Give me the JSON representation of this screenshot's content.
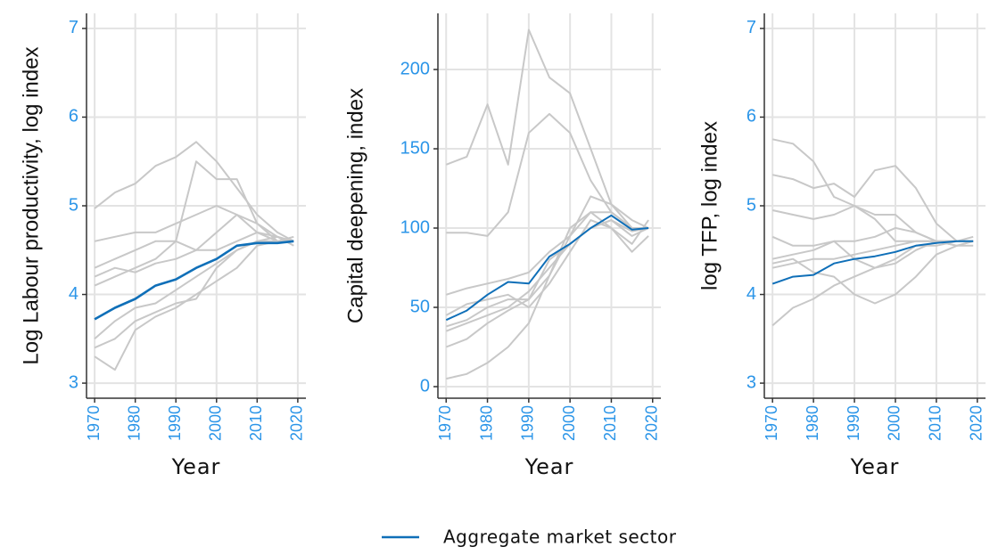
{
  "chart_data": [
    {
      "type": "line",
      "xlabel": "Year",
      "ylabel": "Log Labour productivity, log index",
      "x": [
        1970,
        1975,
        1980,
        1985,
        1990,
        1995,
        2000,
        2005,
        2010,
        2015,
        2019
      ],
      "xlim": [
        1968,
        2022
      ],
      "xticks": [
        1970,
        1980,
        1990,
        2000,
        2010,
        2020
      ],
      "ylim": [
        2.83,
        7.17
      ],
      "yticks": [
        3,
        4,
        5,
        6,
        7
      ],
      "grid": true,
      "legend": "bottom",
      "series": [
        {
          "color": "#c8c8c8",
          "values": [
            4.97,
            5.15,
            5.25,
            5.45,
            5.55,
            5.72,
            5.5,
            5.2,
            4.9,
            4.7,
            4.6
          ]
        },
        {
          "color": "#c8c8c8",
          "values": [
            4.3,
            4.4,
            4.5,
            4.6,
            4.6,
            5.5,
            5.3,
            5.3,
            4.8,
            4.6,
            4.6
          ]
        },
        {
          "color": "#c8c8c8",
          "values": [
            4.6,
            4.65,
            4.7,
            4.7,
            4.8,
            4.9,
            5.0,
            4.9,
            4.7,
            4.6,
            4.6
          ]
        },
        {
          "color": "#c8c8c8",
          "values": [
            4.2,
            4.3,
            4.25,
            4.35,
            4.4,
            4.5,
            4.7,
            4.9,
            4.8,
            4.65,
            4.6
          ]
        },
        {
          "color": "#c8c8c8",
          "values": [
            3.5,
            3.7,
            3.85,
            3.9,
            4.05,
            4.2,
            4.35,
            4.5,
            4.6,
            4.6,
            4.6
          ]
        },
        {
          "color": "#c8c8c8",
          "values": [
            3.3,
            3.15,
            3.6,
            3.75,
            3.85,
            4.0,
            4.15,
            4.3,
            4.55,
            4.6,
            4.65
          ]
        },
        {
          "color": "#c8c8c8",
          "values": [
            3.4,
            3.5,
            3.7,
            3.8,
            3.9,
            3.95,
            4.3,
            4.5,
            4.6,
            4.65,
            4.55
          ]
        },
        {
          "color": "#c8c8c8",
          "values": [
            4.1,
            4.2,
            4.3,
            4.4,
            4.6,
            4.5,
            4.5,
            4.6,
            4.7,
            4.65,
            4.6
          ]
        },
        {
          "name": "Aggregate market sector",
          "color": "#0f6fb8",
          "values": [
            3.72,
            3.85,
            3.95,
            4.1,
            4.17,
            4.3,
            4.4,
            4.55,
            4.58,
            4.58,
            4.6
          ]
        }
      ]
    },
    {
      "type": "line",
      "xlabel": "Year",
      "ylabel": "Capital deepening, index",
      "x": [
        1970,
        1975,
        1980,
        1985,
        1990,
        1995,
        2000,
        2005,
        2010,
        2015,
        2019
      ],
      "xlim": [
        1968,
        2022
      ],
      "xticks": [
        1970,
        1980,
        1990,
        2000,
        2010,
        2020
      ],
      "ylim": [
        -7.3,
        235.4
      ],
      "yticks": [
        0,
        50,
        100,
        150,
        200
      ],
      "grid": true,
      "series": [
        {
          "color": "#c8c8c8",
          "values": [
            140,
            145,
            178,
            140,
            225,
            195,
            185,
            150,
            115,
            100,
            100
          ]
        },
        {
          "color": "#c8c8c8",
          "values": [
            97,
            97,
            95,
            110,
            160,
            172,
            160,
            130,
            110,
            100,
            100
          ]
        },
        {
          "color": "#c8c8c8",
          "values": [
            58,
            62,
            65,
            68,
            72,
            85,
            95,
            110,
            110,
            100,
            100
          ]
        },
        {
          "color": "#c8c8c8",
          "values": [
            35,
            40,
            45,
            50,
            60,
            75,
            90,
            100,
            105,
            95,
            100
          ]
        },
        {
          "color": "#c8c8c8",
          "values": [
            25,
            30,
            40,
            48,
            55,
            70,
            95,
            120,
            115,
            105,
            100
          ]
        },
        {
          "color": "#c8c8c8",
          "values": [
            5,
            8,
            15,
            25,
            40,
            70,
            100,
            110,
            100,
            90,
            105
          ]
        },
        {
          "color": "#c8c8c8",
          "values": [
            38,
            42,
            50,
            55,
            55,
            80,
            90,
            100,
            105,
            98,
            100
          ]
        },
        {
          "color": "#c8c8c8",
          "values": [
            45,
            52,
            55,
            58,
            50,
            65,
            85,
            105,
            100,
            85,
            95
          ]
        },
        {
          "color": "#0f6fb8",
          "values": [
            42,
            48,
            58,
            66,
            65,
            82,
            90,
            100,
            108,
            99,
            100
          ]
        }
      ]
    },
    {
      "type": "line",
      "xlabel": "Year",
      "ylabel": "log TFP, log index",
      "x": [
        1970,
        1975,
        1980,
        1985,
        1990,
        1995,
        2000,
        2005,
        2010,
        2015,
        2019
      ],
      "xlim": [
        1968,
        2022
      ],
      "xticks": [
        1970,
        1980,
        1990,
        2000,
        2010,
        2020
      ],
      "ylim": [
        2.83,
        7.17
      ],
      "yticks": [
        3,
        4,
        5,
        6,
        7
      ],
      "grid": true,
      "series": [
        {
          "color": "#c8c8c8",
          "values": [
            5.75,
            5.7,
            5.5,
            5.1,
            5.0,
            4.9,
            4.9,
            4.7,
            4.6,
            4.6,
            4.6
          ]
        },
        {
          "color": "#c8c8c8",
          "values": [
            5.35,
            5.3,
            5.2,
            5.25,
            5.1,
            5.4,
            5.45,
            5.2,
            4.8,
            4.6,
            4.6
          ]
        },
        {
          "color": "#c8c8c8",
          "values": [
            4.95,
            4.9,
            4.85,
            4.9,
            5.0,
            4.85,
            4.6,
            4.6,
            4.6,
            4.55,
            4.6
          ]
        },
        {
          "color": "#c8c8c8",
          "values": [
            4.65,
            4.55,
            4.55,
            4.6,
            4.6,
            4.65,
            4.75,
            4.7,
            4.6,
            4.6,
            4.65
          ]
        },
        {
          "color": "#c8c8c8",
          "values": [
            4.3,
            4.35,
            4.4,
            4.4,
            4.45,
            4.5,
            4.55,
            4.6,
            4.6,
            4.6,
            4.6
          ]
        },
        {
          "color": "#c8c8c8",
          "values": [
            3.65,
            3.85,
            3.95,
            4.1,
            4.2,
            4.3,
            4.4,
            4.55,
            4.55,
            4.6,
            4.6
          ]
        },
        {
          "color": "#c8c8c8",
          "values": [
            4.35,
            4.4,
            4.25,
            4.2,
            4.0,
            3.9,
            4.0,
            4.2,
            4.45,
            4.55,
            4.6
          ]
        },
        {
          "color": "#c8c8c8",
          "values": [
            4.4,
            4.45,
            4.5,
            4.6,
            4.4,
            4.3,
            4.35,
            4.5,
            4.6,
            4.55,
            4.55
          ]
        },
        {
          "color": "#0f6fb8",
          "values": [
            4.12,
            4.2,
            4.22,
            4.35,
            4.4,
            4.43,
            4.48,
            4.55,
            4.58,
            4.6,
            4.6
          ]
        }
      ]
    }
  ]
}
